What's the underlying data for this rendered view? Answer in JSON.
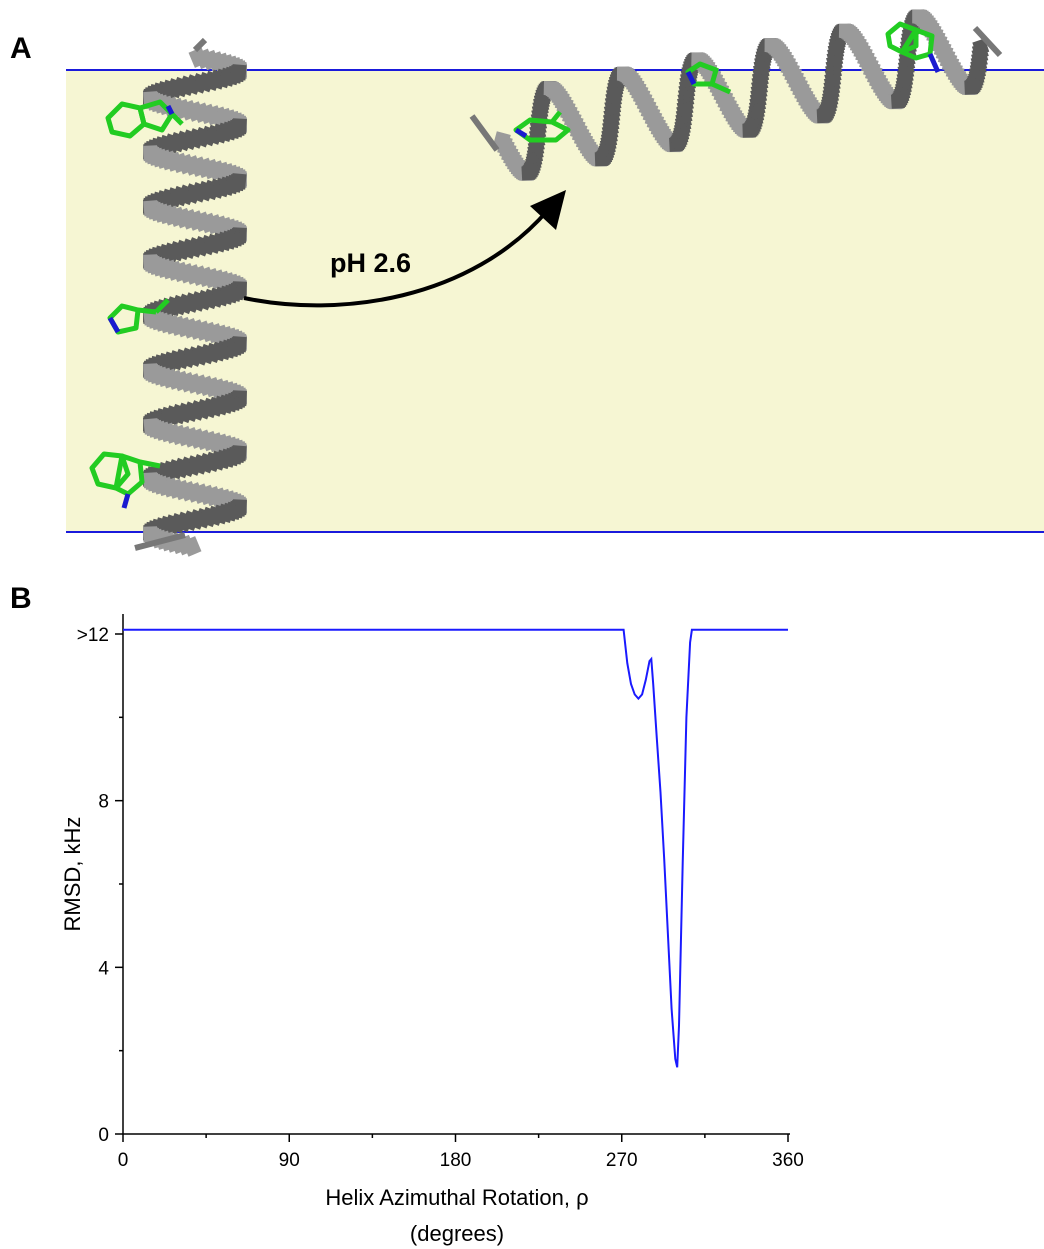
{
  "panels": {
    "a_label": "A",
    "b_label": "B"
  },
  "panel_a": {
    "arrow_label": "pH 2.6",
    "colors": {
      "membrane_fill": "#f6f6d3",
      "membrane_line": "#1a1adb",
      "helix": "#8c8c8c",
      "side_chain": "#22cc22",
      "nitrogen": "#1a1ad0"
    }
  },
  "chart_data": {
    "type": "line",
    "xlabel": "Helix Azimuthal Rotation, ρ",
    "xlabel_unit": "(degrees)",
    "ylabel": "RMSD, kHz",
    "xlim": [
      0,
      360
    ],
    "ylim": [
      0,
      12
    ],
    "xticks": [
      0,
      90,
      180,
      270,
      360
    ],
    "xtick_labels": [
      "0",
      "90",
      "180",
      "270",
      "360"
    ],
    "yticks": [
      0,
      4,
      8,
      12
    ],
    "ytick_labels": [
      "0",
      "4",
      "8",
      ">12"
    ],
    "grid": false,
    "line_color": "#1a1aff",
    "series": [
      {
        "x": [
          0,
          271,
          273,
          275,
          277,
          279,
          281,
          283,
          285,
          286,
          287,
          289,
          291,
          293,
          295,
          297,
          299,
          300,
          301,
          303,
          305,
          307,
          308,
          310,
          360
        ],
        "y": [
          12.1,
          12.1,
          11.3,
          10.8,
          10.55,
          10.45,
          10.55,
          10.9,
          11.35,
          11.4,
          10.8,
          9.5,
          8.2,
          6.6,
          4.8,
          3.0,
          1.8,
          1.6,
          2.6,
          6.5,
          10.0,
          11.8,
          12.1,
          12.1,
          12.1
        ]
      }
    ]
  }
}
